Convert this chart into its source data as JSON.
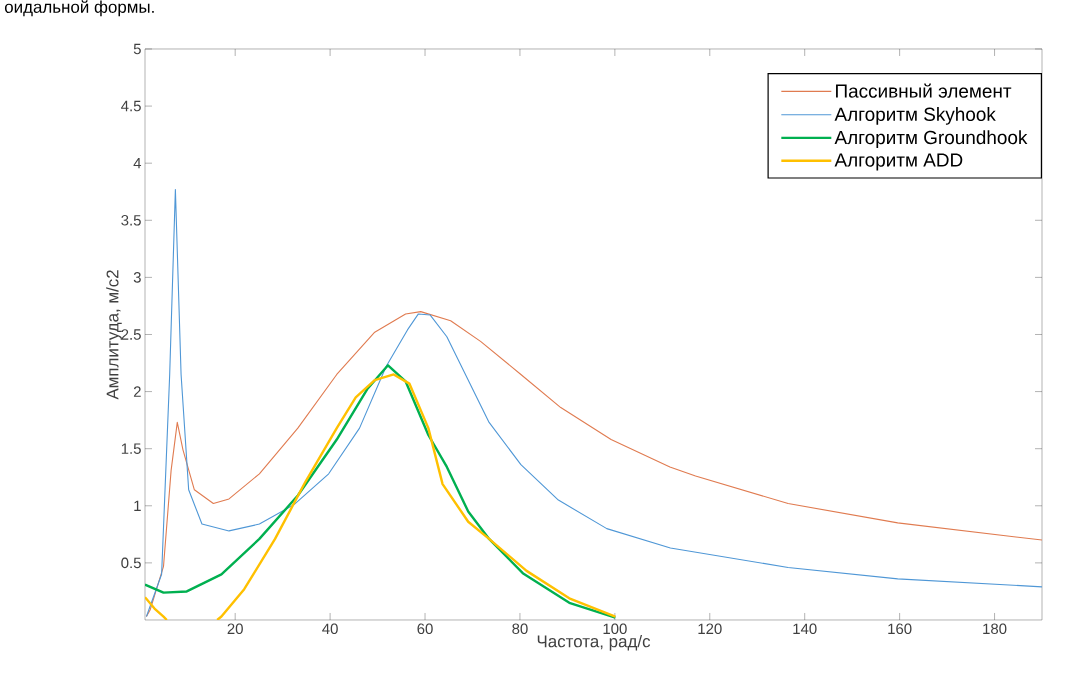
{
  "chart_data": {
    "type": "line",
    "xlabel": "Частота, рад/с",
    "ylabel": "Амплитуда, м/с2",
    "annotations": [
      "оидальной формы."
    ],
    "xlim": [
      1,
      190
    ],
    "ylim": [
      0,
      5
    ],
    "xticks": [
      20,
      40,
      60,
      80,
      100,
      120,
      140,
      160,
      180
    ],
    "yticks": [
      0.5,
      1,
      1.5,
      2,
      2.5,
      3,
      3.5,
      4,
      4.5,
      5
    ],
    "legend": "top right",
    "marker": "none",
    "line_style": "solid",
    "series": [
      {
        "name": "Пассивный элемент",
        "color": "#e07b50",
        "x": [
          1.3,
          2.1,
          4.9,
          6.5,
          7.8,
          9.0,
          11.4,
          15.4,
          18.7,
          25.1,
          33.2,
          41.4,
          49.4,
          55.9,
          59.1,
          65.4,
          71.7,
          80.2,
          88.6,
          99.2,
          111.6,
          117,
          136.5,
          159.6,
          190
        ],
        "values": [
          0.03,
          0.09,
          0.47,
          1.31,
          1.73,
          1.49,
          1.14,
          1.02,
          1.06,
          1.28,
          1.68,
          2.15,
          2.52,
          2.68,
          2.7,
          2.62,
          2.44,
          2.15,
          1.86,
          1.58,
          1.34,
          1.26,
          1.02,
          0.85,
          0.7
        ]
      },
      {
        "name": "Алгоритм Skyhook",
        "color": "#4f97d6",
        "x": [
          1.3,
          4.5,
          6.2,
          7.4,
          8.6,
          10.2,
          13.0,
          18.7,
          25.1,
          32.4,
          39.7,
          46.2,
          51.8,
          56.3,
          58.6,
          61.1,
          64.6,
          73.5,
          80.2,
          88.1,
          98.3,
          111.7,
          136.5,
          159.6,
          190
        ],
        "values": [
          0.03,
          0.4,
          2.15,
          3.77,
          2.15,
          1.14,
          0.84,
          0.78,
          0.84,
          1.01,
          1.28,
          1.68,
          2.22,
          2.54,
          2.68,
          2.67,
          2.48,
          1.73,
          1.36,
          1.05,
          0.8,
          0.63,
          0.46,
          0.36,
          0.29
        ]
      },
      {
        "name": "Алгоритм Groundhook",
        "color": "#00b050",
        "x": [
          1,
          4.9,
          9.8,
          17.1,
          25.1,
          33.2,
          41.4,
          47.8,
          52.2,
          55.9,
          60.7,
          64.6,
          69.1,
          73.5,
          80.6,
          90.4,
          100.1
        ],
        "values": [
          0.31,
          0.24,
          0.25,
          0.4,
          0.71,
          1.09,
          1.58,
          2.02,
          2.23,
          2.09,
          1.62,
          1.34,
          0.95,
          0.71,
          0.41,
          0.15,
          0.02
        ]
      },
      {
        "name": "Алгоритм ADD",
        "color": "#ffc000",
        "x": [
          1,
          3,
          4.9,
          5.6,
          10,
          16.2,
          17.1,
          21.9,
          28.4,
          34.8,
          41.4,
          45.4,
          49.4,
          53.4,
          56.7,
          60.7,
          63.7,
          69.1,
          73.5,
          81.4,
          90.4,
          100.1
        ],
        "values": [
          0.2,
          0.1,
          0.03,
          0,
          null,
          0,
          0.03,
          0.27,
          0.71,
          1.21,
          1.68,
          1.95,
          2.1,
          2.15,
          2.07,
          1.68,
          1.19,
          0.86,
          0.71,
          0.43,
          0.19,
          0.03
        ]
      }
    ]
  }
}
